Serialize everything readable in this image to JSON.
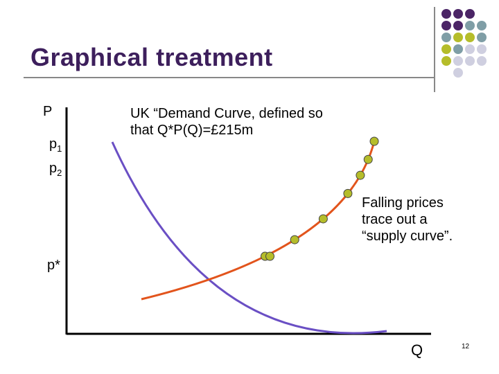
{
  "slide": {
    "title": "Graphical treatment",
    "page_number": "12"
  },
  "labels": {
    "y_axis": "P",
    "x_axis": "Q",
    "p1": "p",
    "p1_sub": "1",
    "p2": "p",
    "p2_sub": "2",
    "pstar": "p*"
  },
  "annotations": {
    "demand_note": "UK “Demand Curve, defined so that Q*P(Q)=£215m",
    "supply_note": "Falling prices trace out a “supply curve”."
  },
  "colors": {
    "title": "#3d1f5c",
    "demand_curve": "#6a4fc4",
    "supply_curve": "#e2541c",
    "points": "#b5bd2a",
    "dot_purple": "#4b2566",
    "dot_teal": "#7f9ea6",
    "dot_olive": "#b5bd2a",
    "dot_lavender": "#cfcfe0"
  },
  "decor_dot_grid": [
    [
      "purple",
      "purple",
      "purple",
      null
    ],
    [
      "purple",
      "purple",
      "teal",
      "teal"
    ],
    [
      "teal",
      "olive",
      "olive",
      "teal"
    ],
    [
      "olive",
      "teal",
      "lavender",
      "lavender"
    ],
    [
      "olive",
      "lavender",
      "lavender",
      "lavender"
    ],
    [
      null,
      "lavender",
      null,
      null
    ]
  ]
}
